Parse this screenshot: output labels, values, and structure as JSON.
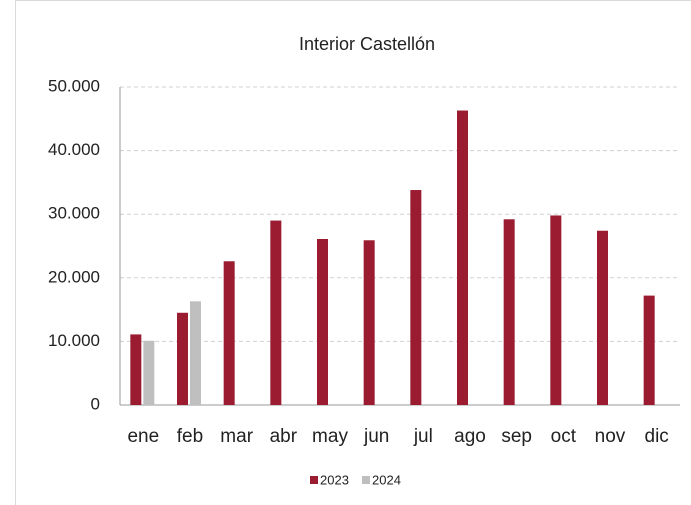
{
  "chart_data": {
    "type": "bar",
    "title": "Interior Castellón",
    "categories": [
      "ene",
      "feb",
      "mar",
      "abr",
      "may",
      "jun",
      "jul",
      "ago",
      "sep",
      "oct",
      "nov",
      "dic"
    ],
    "series": [
      {
        "name": "2023",
        "color": "#9b1b30",
        "values": [
          11100,
          14500,
          22600,
          29000,
          26100,
          25900,
          33800,
          46300,
          29200,
          29800,
          27400,
          17200
        ]
      },
      {
        "name": "2024",
        "color": "#bfbfbf",
        "values": [
          10100,
          16300,
          null,
          null,
          null,
          null,
          null,
          null,
          null,
          null,
          null,
          null
        ]
      }
    ],
    "ylim": [
      0,
      50000
    ],
    "yticks": [
      0,
      {
        "value": 10000,
        "label": "10.000"
      },
      {
        "value": 20000,
        "label": "20.000"
      },
      {
        "value": 30000,
        "label": "30.000"
      },
      {
        "value": 40000,
        "label": "40.000"
      },
      {
        "value": 50000,
        "label": "50.000"
      }
    ],
    "grid": true,
    "legend": "bottom"
  }
}
